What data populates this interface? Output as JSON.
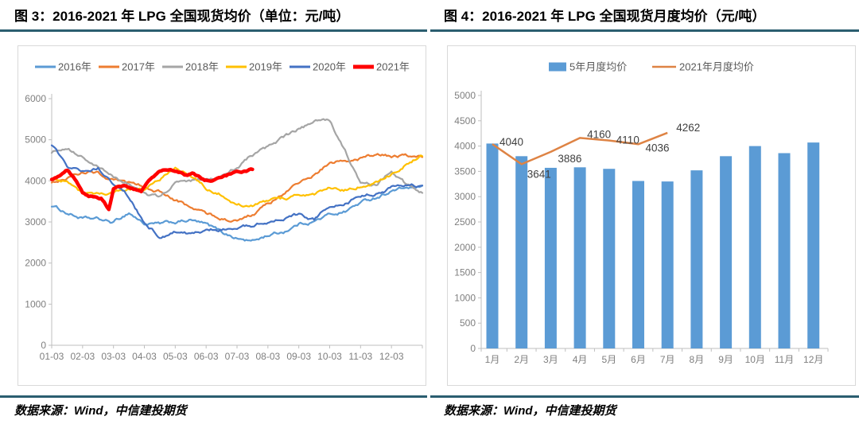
{
  "page": {
    "background": "#ffffff",
    "rule_color": "#2B5E70",
    "axis_color": "#BFBFBF",
    "tick_label_color": "#7F7F7F",
    "data_label_color": "#404040"
  },
  "figures": [
    {
      "title": "图 3：2016-2021 年 LPG 全国现货均价（单位：元/吨）",
      "source": "数据来源：Wind，中信建投期货"
    },
    {
      "title": "图 4：2016-2021 年 LPG 全国现货月度均价（元/吨）",
      "source": "数据来源：Wind，中信建投期货"
    }
  ],
  "chart_data": [
    {
      "type": "line",
      "title": "2016-2021 年 LPG 全国现货均价（元/吨）",
      "x_axis_note": "daily series, x in months from Jan-03 (0) to year end (12)",
      "x_tick_labels": [
        "01-03",
        "02-03",
        "03-03",
        "04-03",
        "05-03",
        "06-03",
        "07-03",
        "08-03",
        "09-03",
        "10-03",
        "11-03",
        "12-03"
      ],
      "ylim": [
        0,
        6000
      ],
      "y_tick_step": 1000,
      "gridlines": false,
      "legend_position": "top",
      "series": [
        {
          "name": "2016年",
          "color": "#5B9BD5",
          "line_width": 2.2,
          "x_start": 0,
          "x_step": 0.5,
          "values": [
            3400,
            3220,
            3080,
            3060,
            2980,
            3230,
            2960,
            2940,
            2990,
            3040,
            2930,
            2760,
            2600,
            2530,
            2680,
            2760,
            2950,
            3020,
            3180,
            3260,
            3470,
            3600,
            3760,
            3830,
            3840
          ]
        },
        {
          "name": "2017年",
          "color": "#ED7D31",
          "line_width": 2.2,
          "x_start": 0,
          "x_step": 0.5,
          "values": [
            3980,
            4080,
            4230,
            4200,
            4000,
            3920,
            3860,
            3740,
            3510,
            3350,
            3210,
            3100,
            3020,
            3180,
            3420,
            3680,
            3950,
            4150,
            4420,
            4500,
            4540,
            4620,
            4600,
            4590,
            4570
          ]
        },
        {
          "name": "2018年",
          "color": "#A5A5A5",
          "line_width": 2.2,
          "x_start": 0,
          "x_step": 0.5,
          "values": [
            4700,
            4840,
            4560,
            4320,
            4080,
            3950,
            3650,
            3590,
            3940,
            4010,
            4060,
            4120,
            4350,
            4620,
            4800,
            5050,
            5250,
            5420,
            5480,
            4720,
            3930,
            3880,
            4280,
            3900,
            3710
          ]
        },
        {
          "name": "2019年",
          "color": "#FFC000",
          "line_width": 2.2,
          "x_start": 0,
          "x_step": 0.5,
          "values": [
            4020,
            3960,
            3700,
            3640,
            3700,
            3760,
            3780,
            4050,
            4330,
            4120,
            3850,
            3680,
            3450,
            3400,
            3490,
            3560,
            3690,
            3640,
            3820,
            3780,
            3880,
            3960,
            4150,
            4420,
            4600
          ]
        },
        {
          "name": "2020年",
          "color": "#4472C4",
          "line_width": 2.2,
          "x_start": 0,
          "x_step": 0.5,
          "values": [
            4850,
            4380,
            4250,
            4320,
            3950,
            3620,
            2980,
            2650,
            2780,
            2720,
            2760,
            2830,
            2820,
            2900,
            3020,
            3100,
            3180,
            3060,
            3400,
            3500,
            3620,
            3700,
            3820,
            3860,
            3880
          ]
        },
        {
          "name": "2021年",
          "color": "#FF0000",
          "line_width": 4.5,
          "x": [
            0,
            0.3,
            0.5,
            0.8,
            1.0,
            1.3,
            1.6,
            1.85,
            2.0,
            2.3,
            2.6,
            2.9,
            3.2,
            3.5,
            3.8,
            4.0,
            4.3,
            4.6,
            5.0,
            5.3,
            5.6,
            6.0,
            6.3,
            6.5
          ],
          "values": [
            4050,
            4150,
            4250,
            4000,
            3700,
            3620,
            3580,
            3310,
            3800,
            3870,
            3840,
            3720,
            4050,
            4230,
            4280,
            4230,
            4150,
            4180,
            4020,
            4050,
            4100,
            4210,
            4260,
            4300
          ]
        }
      ]
    },
    {
      "type": "bar",
      "title": "2016-2021 年 LPG 全国现货月度均价（元/吨）",
      "categories": [
        "1月",
        "2月",
        "3月",
        "4月",
        "5月",
        "6月",
        "7月",
        "8月",
        "9月",
        "10月",
        "11月",
        "12月"
      ],
      "ylim": [
        0,
        5000
      ],
      "y_tick_step": 500,
      "gridlines": false,
      "legend_position": "top",
      "series": [
        {
          "name": "5年月度均价",
          "type": "bar",
          "color": "#5B9BD5",
          "values": [
            4050,
            3800,
            3570,
            3580,
            3550,
            3310,
            3300,
            3520,
            3800,
            4000,
            3860,
            4070
          ]
        },
        {
          "name": "2021年月度均价",
          "type": "line",
          "color": "#DE8344",
          "values": [
            4040,
            3641,
            3886,
            4160,
            4110,
            4036,
            4262
          ],
          "data_labels": [
            "4040",
            "3641",
            "3886",
            "4160",
            "4110",
            "4036",
            "4262"
          ]
        }
      ]
    }
  ]
}
